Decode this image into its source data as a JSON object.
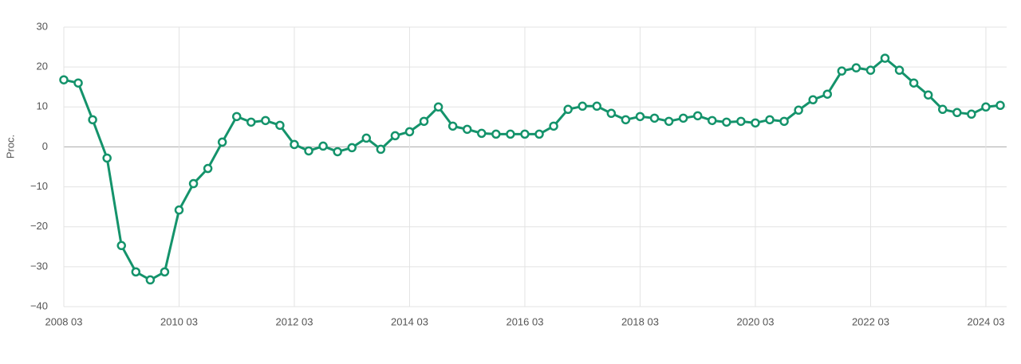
{
  "chart_data": {
    "type": "line",
    "y_label": "Proc.",
    "categories": [
      "2008 03",
      null,
      null,
      null,
      null,
      null,
      null,
      null,
      "2010 03",
      null,
      null,
      null,
      null,
      null,
      null,
      null,
      "2012 03",
      null,
      null,
      null,
      null,
      null,
      null,
      null,
      "2014 03",
      null,
      null,
      null,
      null,
      null,
      null,
      null,
      "2016 03",
      null,
      null,
      null,
      null,
      null,
      null,
      null,
      "2018 03",
      null,
      null,
      null,
      null,
      null,
      null,
      null,
      "2020 03",
      null,
      null,
      null,
      null,
      null,
      null,
      null,
      "2022 03",
      null,
      null,
      null,
      null,
      null,
      null,
      null,
      "2024 03",
      null
    ],
    "series": [
      {
        "color": "#14936b",
        "values": [
          16.8,
          16,
          6.8,
          -2.8,
          -24.7,
          -31.3,
          -33.3,
          -31.3,
          -15.8,
          -9.2,
          -5.4,
          1.2,
          7.6,
          6.2,
          6.6,
          5.4,
          0.6,
          -1,
          0.2,
          -1.2,
          -0.2,
          2.2,
          -0.6,
          2.8,
          3.8,
          6.4,
          10,
          5.2,
          4.4,
          3.4,
          3.2,
          3.2,
          3.2,
          3.2,
          5.2,
          9.4,
          10.2,
          10.2,
          8.4,
          6.8,
          7.6,
          7.2,
          6.4,
          7.2,
          7.8,
          6.6,
          6.2,
          6.4,
          6,
          6.8,
          6.4,
          9.2,
          11.8,
          13.2,
          19,
          19.8,
          19.2,
          22.2,
          19.2,
          16,
          13,
          9.4,
          8.6,
          8.2,
          10,
          10.4
        ]
      }
    ],
    "ylim": [
      -40,
      30
    ],
    "yticks": [
      {
        "value": -40,
        "label": "−40"
      },
      {
        "value": -30,
        "label": "−30"
      },
      {
        "value": -20,
        "label": "−20"
      },
      {
        "value": -10,
        "label": "−10"
      },
      0,
      10,
      20,
      30
    ],
    "grid": true
  }
}
